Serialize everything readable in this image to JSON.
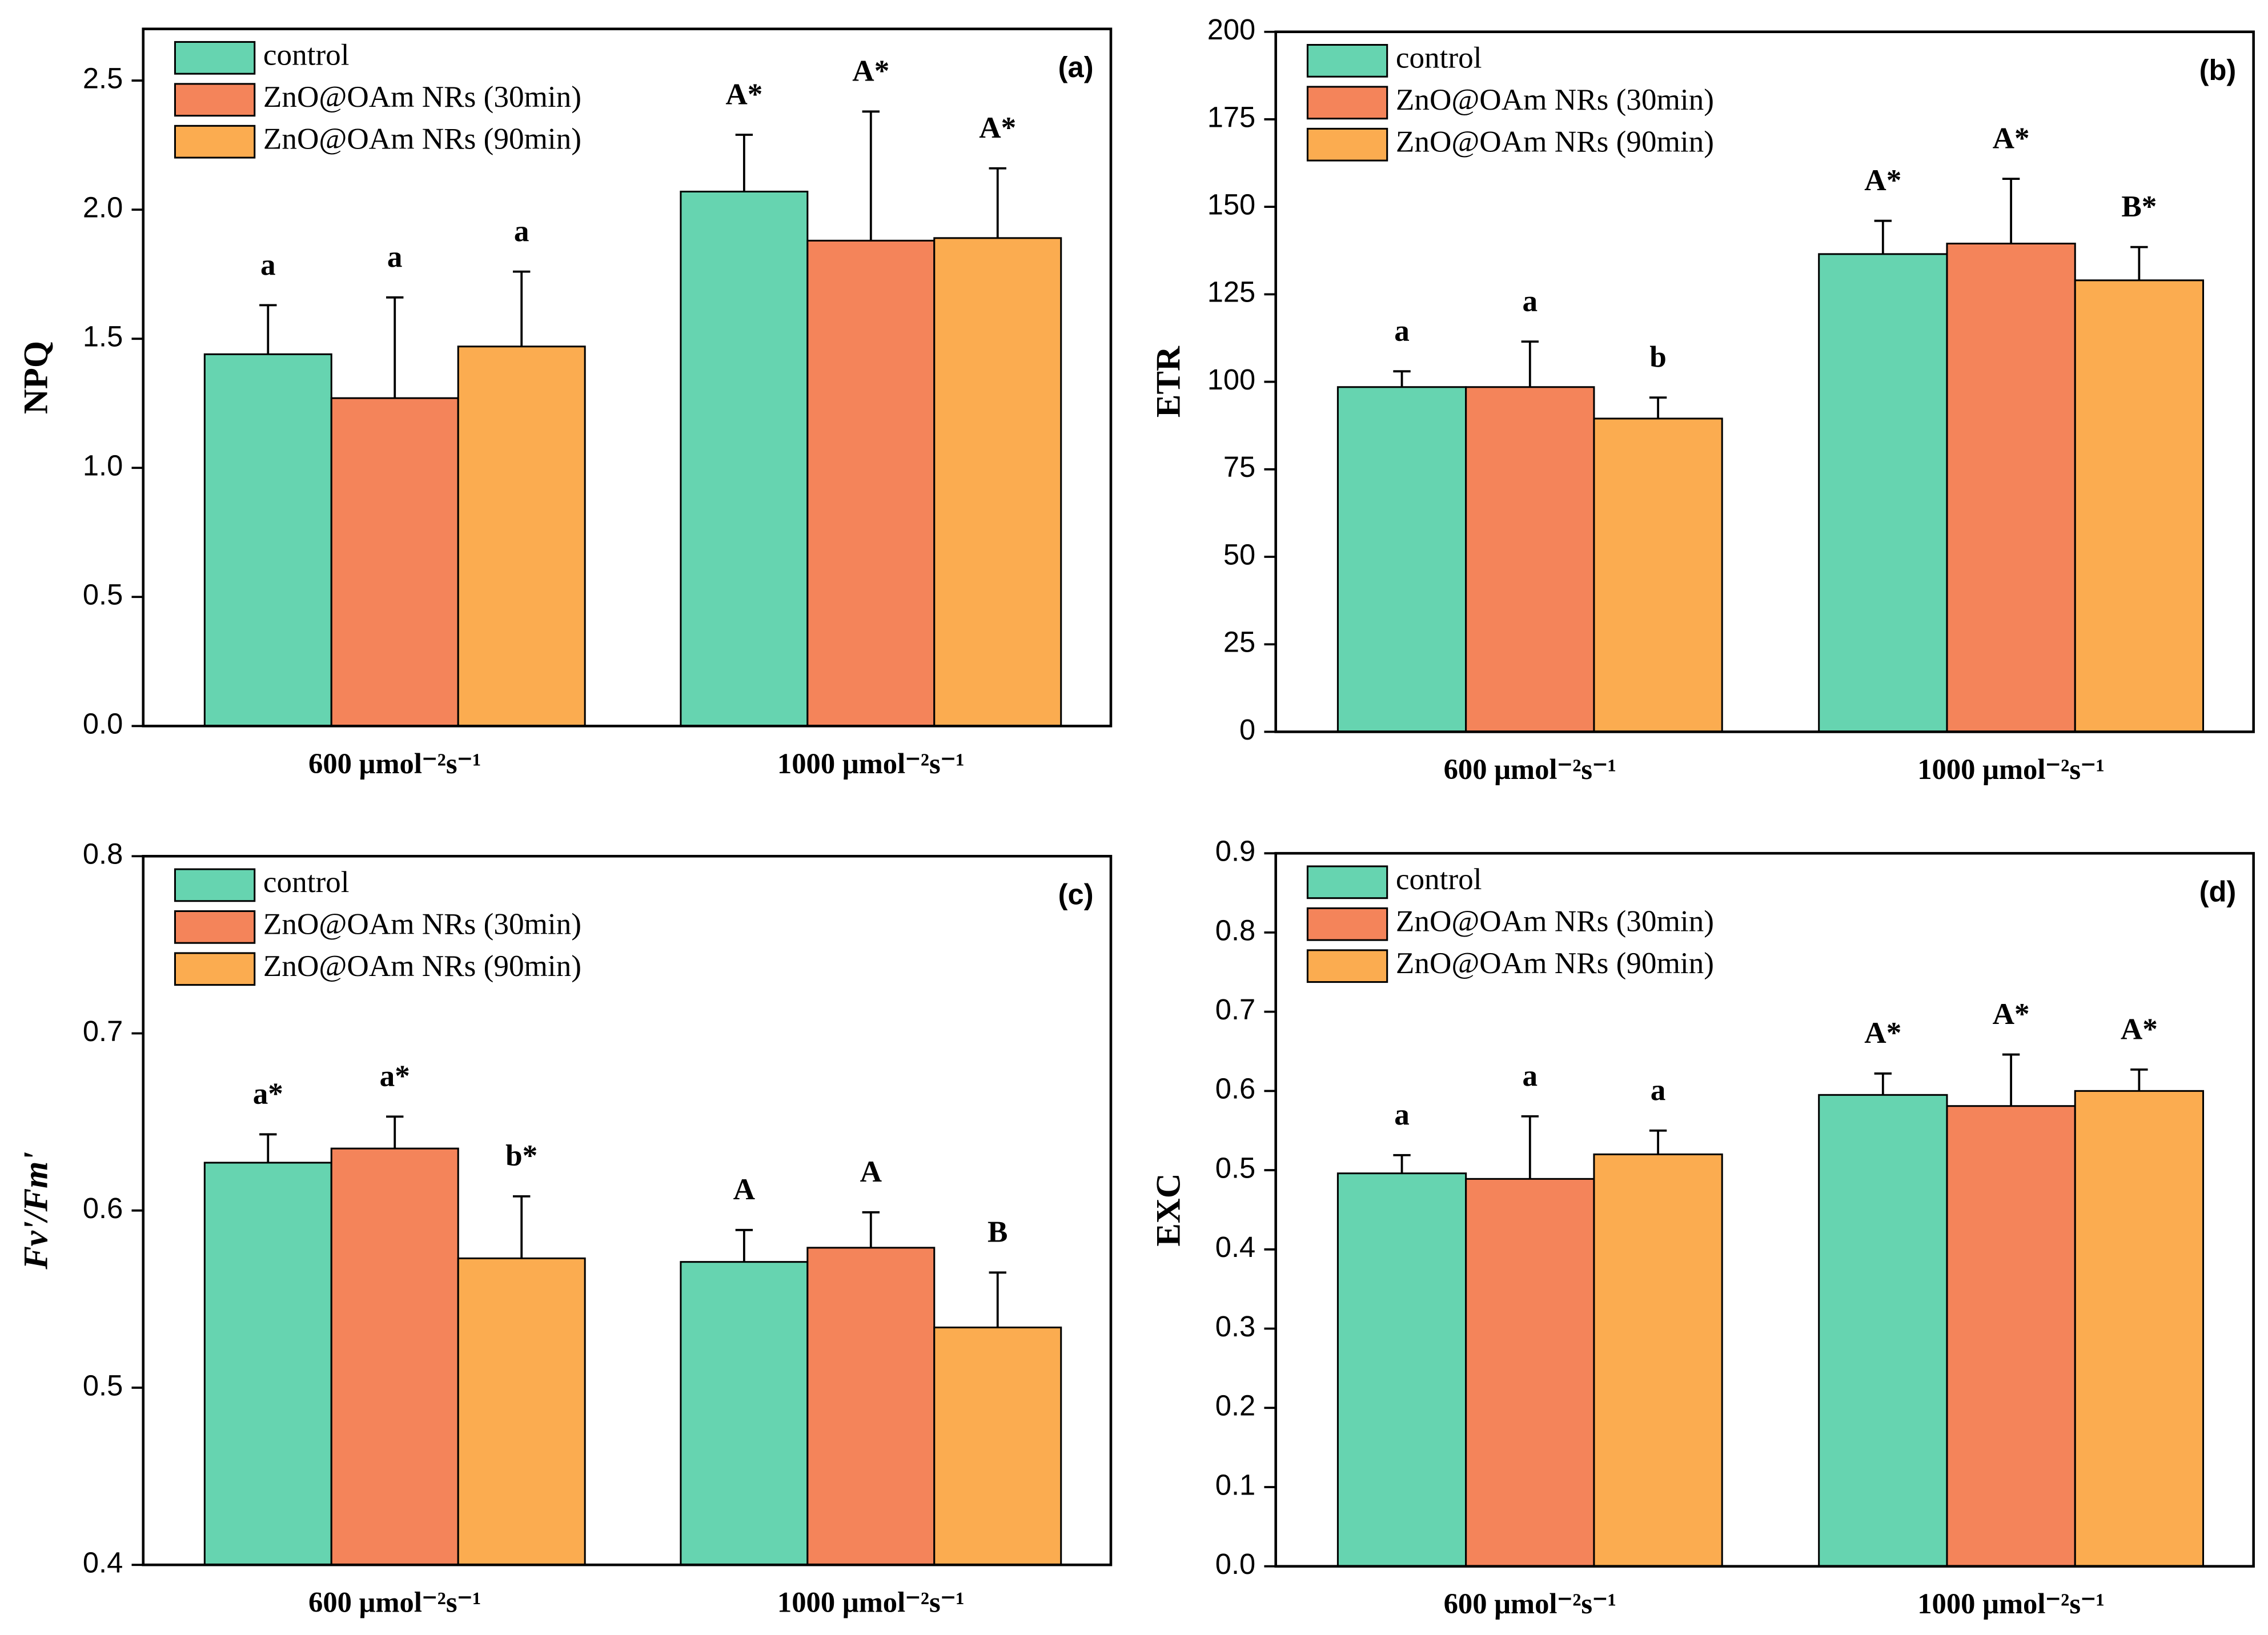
{
  "chart_data": [
    {
      "type": "bar",
      "panel_label": "(a)",
      "ylabel": "NPQ",
      "categories": [
        "600 μmol⁻²s⁻¹",
        "1000 μmol⁻²s⁻¹"
      ],
      "series": [
        {
          "name": "control",
          "color": "#66d4b0",
          "values": [
            1.44,
            2.07
          ],
          "errors": [
            0.19,
            0.22
          ],
          "labels": [
            "a",
            "A*"
          ]
        },
        {
          "name": "ZnO@OAm NRs (30min)",
          "color": "#f4845a",
          "values": [
            1.27,
            1.88
          ],
          "errors": [
            0.39,
            0.5
          ],
          "labels": [
            "a",
            "A*"
          ]
        },
        {
          "name": "ZnO@OAm NRs (90min)",
          "color": "#fbac50",
          "values": [
            1.47,
            1.89
          ],
          "errors": [
            0.29,
            0.27
          ],
          "labels": [
            "a",
            "A*"
          ]
        }
      ],
      "ylim": [
        0,
        2.7
      ],
      "yticks": [
        {
          "value": 0,
          "label": "0.0"
        },
        0.5,
        {
          "value": 1,
          "label": "1.0"
        },
        1.5,
        {
          "value": 2,
          "label": "2.0"
        },
        2.5
      ],
      "legend": "upper left"
    },
    {
      "type": "bar",
      "panel_label": "(b)",
      "ylabel": "ETR",
      "categories": [
        "600 μmol⁻²s⁻¹",
        "1000 μmol⁻²s⁻¹"
      ],
      "series": [
        {
          "name": "control",
          "color": "#66d4b0",
          "values": [
            98.5,
            136.5
          ],
          "errors": [
            4.5,
            9.5
          ],
          "labels": [
            "a",
            "A*"
          ]
        },
        {
          "name": "ZnO@OAm NRs (30min)",
          "color": "#f4845a",
          "values": [
            98.5,
            139.5
          ],
          "errors": [
            13,
            18.5
          ],
          "labels": [
            "a",
            "A*"
          ]
        },
        {
          "name": "ZnO@OAm NRs (90min)",
          "color": "#fbac50",
          "values": [
            89.5,
            129
          ],
          "errors": [
            6,
            9.5
          ],
          "labels": [
            "b",
            "B*"
          ]
        }
      ],
      "ylim": [
        0,
        200
      ],
      "yticks": [
        0,
        25,
        50,
        75,
        100,
        125,
        150,
        175,
        200
      ],
      "legend": "upper left"
    },
    {
      "type": "bar",
      "panel_label": "(c)",
      "ylabel": "Fv'/Fm'",
      "categories": [
        "600 μmol⁻²s⁻¹",
        "1000 μmol⁻²s⁻¹"
      ],
      "series": [
        {
          "name": "control",
          "color": "#66d4b0",
          "values": [
            0.627,
            0.571
          ],
          "errors": [
            0.016,
            0.018
          ],
          "labels": [
            "a*",
            "A"
          ]
        },
        {
          "name": "ZnO@OAm NRs (30min)",
          "color": "#f4845a",
          "values": [
            0.635,
            0.579
          ],
          "errors": [
            0.018,
            0.02
          ],
          "labels": [
            "a*",
            "A"
          ]
        },
        {
          "name": "ZnO@OAm NRs (90min)",
          "color": "#fbac50",
          "values": [
            0.573,
            0.534
          ],
          "errors": [
            0.035,
            0.031
          ],
          "labels": [
            "b*",
            "B"
          ]
        }
      ],
      "ylim": [
        0.4,
        0.8
      ],
      "yticks": [
        0.4,
        0.5,
        0.6,
        0.7,
        0.8
      ],
      "legend": "upper left"
    },
    {
      "type": "bar",
      "panel_label": "(d)",
      "ylabel": "EXC",
      "categories": [
        "600 μmol⁻²s⁻¹",
        "1000 μmol⁻²s⁻¹"
      ],
      "series": [
        {
          "name": "control",
          "color": "#66d4b0",
          "values": [
            0.496,
            0.595
          ],
          "errors": [
            0.023,
            0.027
          ],
          "labels": [
            "a",
            "A*"
          ]
        },
        {
          "name": "ZnO@OAm NRs (30min)",
          "color": "#f4845a",
          "values": [
            0.489,
            0.581
          ],
          "errors": [
            0.079,
            0.065
          ],
          "labels": [
            "a",
            "A*"
          ]
        },
        {
          "name": "ZnO@OAm NRs (90min)",
          "color": "#fbac50",
          "values": [
            0.52,
            0.6
          ],
          "errors": [
            0.03,
            0.027
          ],
          "labels": [
            "a",
            "A*"
          ]
        }
      ],
      "ylim": [
        0,
        0.9
      ],
      "yticks": [
        {
          "value": 0,
          "label": "0.0"
        },
        0.1,
        0.2,
        0.3,
        0.4,
        0.5,
        0.6,
        0.7,
        0.8,
        0.9
      ],
      "legend": "upper left"
    }
  ]
}
